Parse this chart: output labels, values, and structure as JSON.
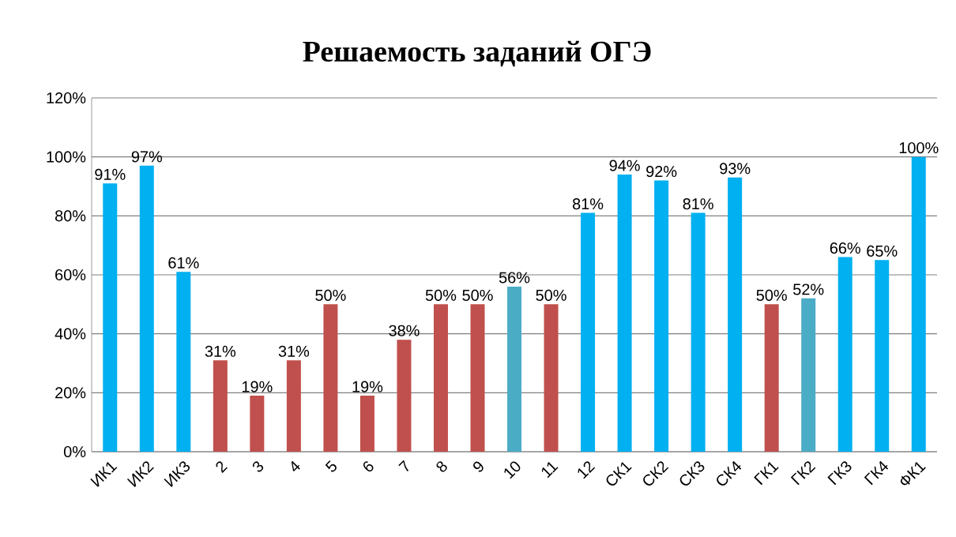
{
  "chart_data": {
    "type": "bar",
    "title": "Решаемость заданий ОГЭ",
    "categories": [
      "ИК1",
      "ИК2",
      "ИК3",
      "2",
      "3",
      "4",
      "5",
      "6",
      "7",
      "8",
      "9",
      "10",
      "11",
      "12",
      "СК1",
      "СК2",
      "СК3",
      "СК4",
      "ГК1",
      "ГК2",
      "ГК3",
      "ГК4",
      "ФК1"
    ],
    "values": [
      91,
      97,
      61,
      31,
      19,
      31,
      50,
      19,
      38,
      50,
      50,
      56,
      50,
      81,
      94,
      92,
      81,
      93,
      50,
      52,
      66,
      65,
      100
    ],
    "value_labels": [
      "91%",
      "97%",
      "61%",
      "31%",
      "19%",
      "31%",
      "50%",
      "19%",
      "38%",
      "50%",
      "50%",
      "56%",
      "50%",
      "81%",
      "94%",
      "92%",
      "81%",
      "93%",
      "50%",
      "52%",
      "66%",
      "65%",
      "100%"
    ],
    "colors": [
      "#00b0f0",
      "#00b0f0",
      "#00b0f0",
      "#c0504d",
      "#c0504d",
      "#c0504d",
      "#c0504d",
      "#c0504d",
      "#c0504d",
      "#c0504d",
      "#c0504d",
      "#4bacc6",
      "#c0504d",
      "#00b0f0",
      "#00b0f0",
      "#00b0f0",
      "#00b0f0",
      "#00b0f0",
      "#c0504d",
      "#4bacc6",
      "#00b0f0",
      "#00b0f0",
      "#00b0f0"
    ],
    "ylim": [
      0,
      120
    ],
    "yticks": [
      {
        "value": 0,
        "label": "0%"
      },
      {
        "value": 20,
        "label": "20%"
      },
      {
        "value": 40,
        "label": "40%"
      },
      {
        "value": 60,
        "label": "60%"
      },
      {
        "value": 80,
        "label": "80%"
      },
      {
        "value": 100,
        "label": "100%"
      },
      {
        "value": 120,
        "label": "120%"
      }
    ],
    "grid": "y"
  }
}
